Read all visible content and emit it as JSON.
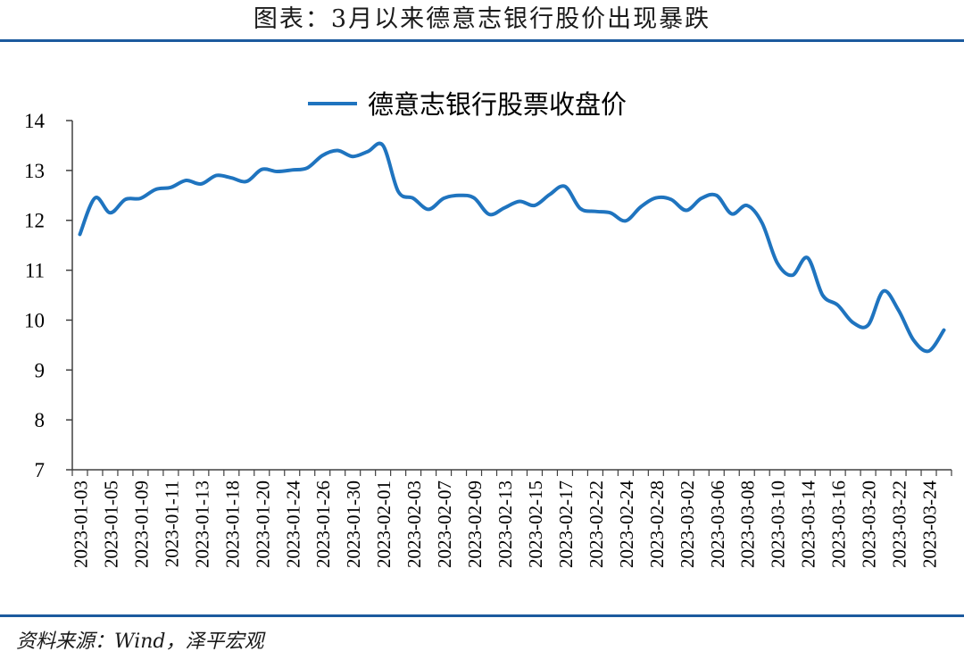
{
  "header": {
    "title": "图表：3月以来德意志银行股价出现暴跌"
  },
  "footer": {
    "source": "资料来源：Wind，泽平宏观"
  },
  "colors": {
    "line": "#1f74bf",
    "rule": "#1c5a9e",
    "axis": "#404040"
  },
  "chart_data": {
    "type": "line",
    "title": "",
    "xlabel": "",
    "ylabel": "",
    "ylim": [
      7,
      14
    ],
    "yticks": [
      7,
      8,
      9,
      10,
      11,
      12,
      13,
      14
    ],
    "grid": false,
    "legend_position": "top-center",
    "x_tick_labels": [
      "2023-01-03",
      "2023-01-05",
      "2023-01-09",
      "2023-01-11",
      "2023-01-13",
      "2023-01-18",
      "2023-01-20",
      "2023-01-24",
      "2023-01-26",
      "2023-01-30",
      "2023-02-01",
      "2023-02-03",
      "2023-02-07",
      "2023-02-09",
      "2023-02-13",
      "2023-02-15",
      "2023-02-17",
      "2023-02-22",
      "2023-02-24",
      "2023-02-28",
      "2023-03-02",
      "2023-03-06",
      "2023-03-08",
      "2023-03-10",
      "2023-03-14",
      "2023-03-16",
      "2023-03-20",
      "2023-03-22",
      "2023-03-24"
    ],
    "x": [
      "2023-01-03",
      "2023-01-04",
      "2023-01-05",
      "2023-01-06",
      "2023-01-09",
      "2023-01-10",
      "2023-01-11",
      "2023-01-12",
      "2023-01-13",
      "2023-01-16",
      "2023-01-18",
      "2023-01-19",
      "2023-01-20",
      "2023-01-23",
      "2023-01-24",
      "2023-01-25",
      "2023-01-26",
      "2023-01-27",
      "2023-01-30",
      "2023-01-31",
      "2023-02-01",
      "2023-02-02",
      "2023-02-03",
      "2023-02-06",
      "2023-02-07",
      "2023-02-08",
      "2023-02-09",
      "2023-02-10",
      "2023-02-13",
      "2023-02-14",
      "2023-02-15",
      "2023-02-16",
      "2023-02-17",
      "2023-02-20",
      "2023-02-22",
      "2023-02-23",
      "2023-02-24",
      "2023-02-27",
      "2023-02-28",
      "2023-03-01",
      "2023-03-02",
      "2023-03-03",
      "2023-03-06",
      "2023-03-07",
      "2023-03-08",
      "2023-03-09",
      "2023-03-10",
      "2023-03-13",
      "2023-03-14",
      "2023-03-15",
      "2023-03-16",
      "2023-03-17",
      "2023-03-20",
      "2023-03-21",
      "2023-03-22",
      "2023-03-23",
      "2023-03-24",
      "2023-03-27"
    ],
    "series": [
      {
        "name": "德意志银行股票收盘价",
        "values": [
          11.72,
          12.45,
          12.15,
          12.42,
          12.44,
          12.62,
          12.66,
          12.8,
          12.73,
          12.9,
          12.85,
          12.78,
          13.02,
          12.98,
          13.01,
          13.05,
          13.3,
          13.4,
          13.28,
          13.38,
          13.5,
          12.58,
          12.44,
          12.22,
          12.44,
          12.5,
          12.45,
          12.12,
          12.25,
          12.38,
          12.3,
          12.52,
          12.68,
          12.24,
          12.18,
          12.15,
          11.99,
          12.27,
          12.45,
          12.42,
          12.2,
          12.44,
          12.5,
          12.13,
          12.3,
          11.95,
          11.15,
          10.9,
          11.25,
          10.5,
          10.3,
          9.95,
          9.9,
          10.58,
          10.2,
          9.6,
          9.38,
          9.8
        ]
      }
    ]
  }
}
